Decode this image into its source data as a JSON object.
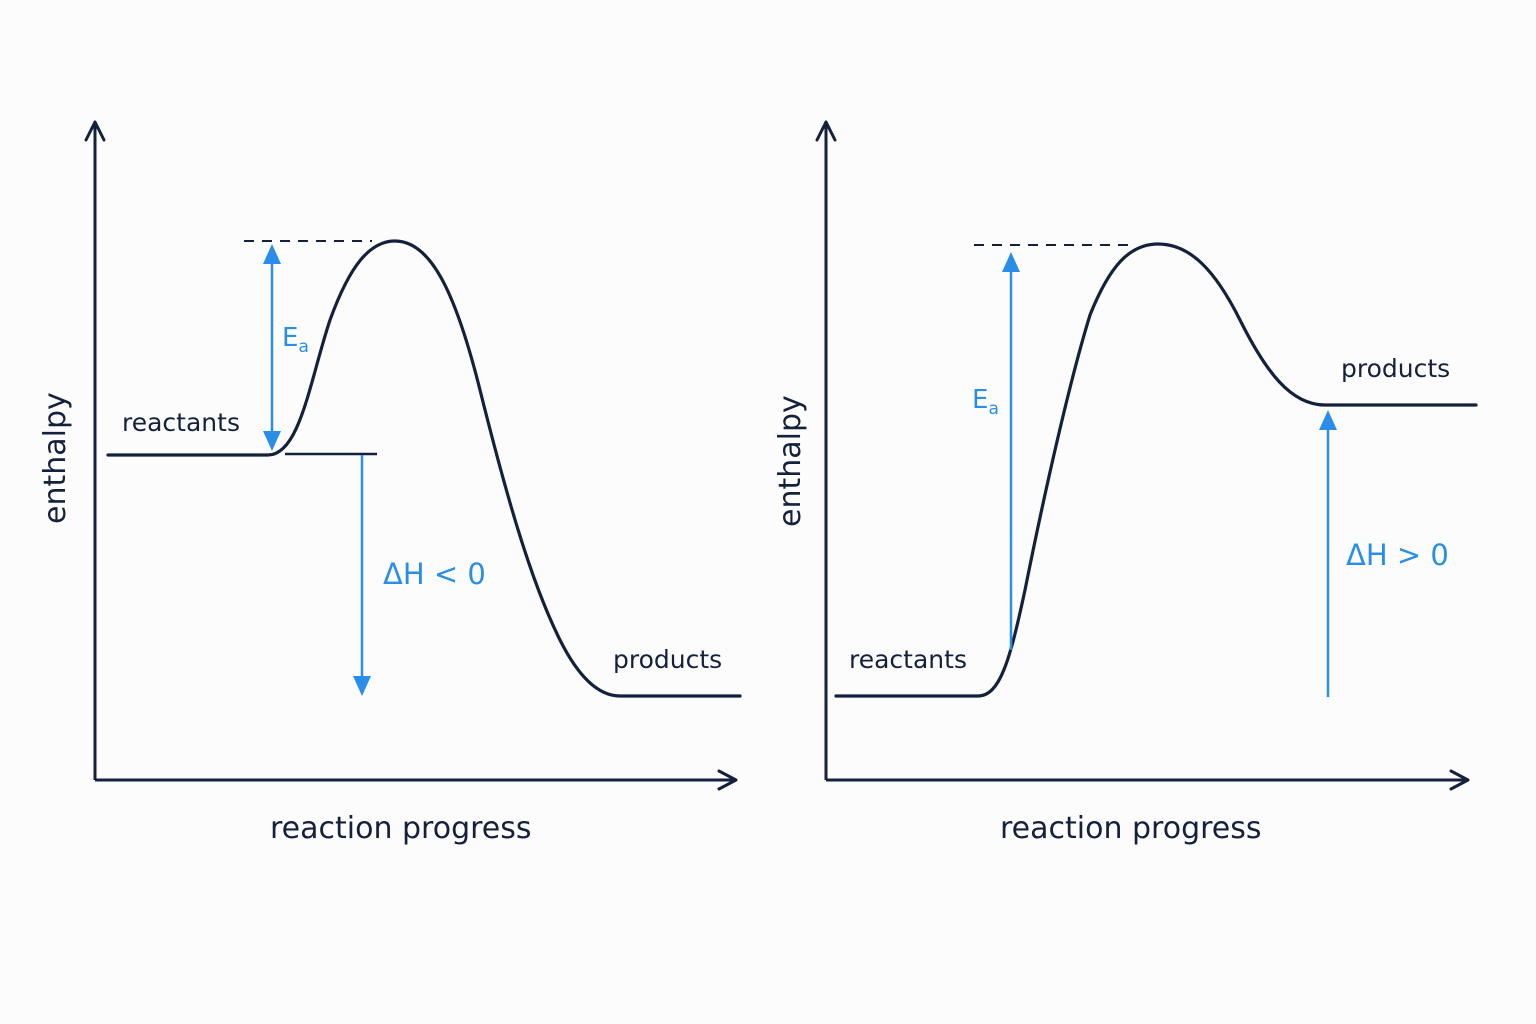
{
  "diagrams": [
    {
      "id": "exothermic",
      "y_axis_label": "enthalpy",
      "x_axis_label": "reaction progress",
      "reactants_label": "reactants",
      "products_label": "products",
      "ea_main": "E",
      "ea_sub": "a",
      "delta_h_label": "ΔH < 0"
    },
    {
      "id": "endothermic",
      "y_axis_label": "enthalpy",
      "x_axis_label": "reaction progress",
      "reactants_label": "reactants",
      "products_label": "products",
      "ea_main": "E",
      "ea_sub": "a",
      "delta_h_label": "ΔH > 0"
    }
  ],
  "colors": {
    "axis": "#14213d",
    "annotation": "#2a8ee8",
    "background": "#fcfcfd"
  }
}
